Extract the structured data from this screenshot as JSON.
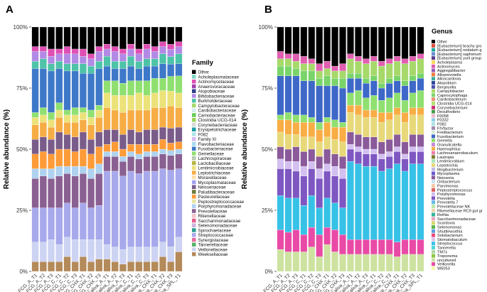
{
  "chart_data": [
    {
      "type": "bar",
      "panel_label": "A",
      "title": "",
      "xlabel": "",
      "ylabel": "Relative abundance (%)",
      "ylim": [
        0,
        100
      ],
      "yticks": [
        "0%",
        "25%",
        "50%",
        "75%",
        "100%"
      ],
      "stacked": true,
      "legend_title": "Family",
      "legend_position": "right",
      "categories": [
        "FCG_A_T1",
        "FCG_A_T2",
        "FCG_A_T3",
        "FCG_C_T1",
        "FCG_C_T2",
        "FCG_C_T3",
        "FCG_CHX_T1",
        "FCG_CHX_T2",
        "FCG_CHX_T3",
        "Saliva_A_T1",
        "Saliva_A_T2",
        "Saliva_A_T3",
        "Saliva_C_T1",
        "Saliva_C_T2",
        "Saliva_C_T3",
        "Saliva_CHX_T1",
        "Saliva_CHX_T2",
        "Saliva_CHX_T3",
        "Saliva_SPL_T1"
      ],
      "legend": [
        "Other",
        "Acholeplasmataceae",
        "Actinomycetaceae",
        "Anaerovoracaceae",
        "Atopobiaceae",
        "Bifidobacteriaceae",
        "Burkholderiaceae",
        "Campylobacteraceae",
        "Cardiobacteriaceae",
        "Carnobacteriaceae",
        "Clostridia UCG-014",
        "Corynebacteriaceae",
        "Erysipelotrichaceae",
        "F082",
        "Family XI",
        "Flavobacteriaceae",
        "Fusobacteriaceae",
        "Gemellaceae",
        "Lachnospiraceae",
        "Lactobacillaceae",
        "Lentimicrobiaceae",
        "Leptotrichiaceae",
        "Moraxellaceae",
        "Mycoplasmataceae",
        "Neisseriaceae",
        "Paludibacteraceae",
        "Pasteurellaceae",
        "Peptostreptococcaceae",
        "Porphyromonadaceae",
        "Prevotellaceae",
        "Rikenellaceae",
        "Saccharimonadaceae",
        "Selenomonadaceae",
        "Spirochaetaceae",
        "Streptococcaceae",
        "Synergistaceae",
        "Tannerellaceae",
        "Veillonellaceae",
        "Weeksellaceae"
      ],
      "colors": [
        "#000000",
        "#7ad7c2",
        "#e04fb3",
        "#a33fb0",
        "#2f3e8c",
        "#b28ae6",
        "#4ec3a8",
        "#a6d96a",
        "#d6ecf0",
        "#66cc55",
        "#9ad35a",
        "#d9d9d9",
        "#1e9ea6",
        "#b0e3e6",
        "#d9b8f0",
        "#a4dcf0",
        "#3e78c8",
        "#8fe070",
        "#b8c9b0",
        "#b5b540",
        "#ece27a",
        "#f6ad45",
        "#ffe0a8",
        "#a2a2f0",
        "#7a5c8a",
        "#707a3a",
        "#ff9b38",
        "#e8e5a0",
        "#aed2ef",
        "#8a6092",
        "#f2c3cf",
        "#ea5e8d",
        "#cdb3df",
        "#2e9e8e",
        "#a8a8ec",
        "#e86aa0",
        "#59b368",
        "#cdd3f2",
        "#b48a5a"
      ],
      "series": [
        {
          "name": "Other",
          "values": [
            8,
            8,
            9,
            9,
            8,
            9,
            9,
            11,
            8,
            7,
            8,
            9,
            7,
            9,
            7,
            8,
            6,
            7,
            6
          ]
        },
        {
          "name": "Actinomycetaceae",
          "values": [
            2,
            2,
            3,
            2,
            3,
            2,
            3,
            2,
            2,
            2,
            2,
            2,
            2,
            2,
            2,
            2,
            2,
            2,
            2
          ]
        },
        {
          "name": "Bifidobacteriaceae",
          "values": [
            4,
            3,
            3,
            3,
            4,
            4,
            3,
            3,
            4,
            3,
            4,
            3,
            3,
            3,
            4,
            3,
            3,
            3,
            3
          ]
        },
        {
          "name": "Burkholderiaceae",
          "values": [
            3,
            4,
            3,
            3,
            3,
            3,
            4,
            3,
            3,
            4,
            3,
            3,
            4,
            3,
            3,
            3,
            4,
            3,
            4
          ]
        },
        {
          "name": "Fusobacteriaceae",
          "values": [
            18,
            16,
            17,
            14,
            16,
            15,
            14,
            15,
            15,
            6,
            5,
            6,
            6,
            5,
            6,
            5,
            6,
            5,
            5
          ]
        },
        {
          "name": "Gemellaceae",
          "values": [
            2,
            3,
            3,
            3,
            2,
            3,
            2,
            3,
            2,
            5,
            6,
            5,
            6,
            5,
            6,
            6,
            5,
            6,
            7
          ]
        },
        {
          "name": "Lentimicrobiaceae",
          "values": [
            3,
            3,
            3,
            3,
            3,
            3,
            3,
            3,
            3,
            6,
            6,
            7,
            6,
            7,
            6,
            6,
            7,
            6,
            6
          ]
        },
        {
          "name": "Leptotrichiaceae",
          "values": [
            6,
            6,
            5,
            6,
            5,
            6,
            5,
            6,
            6,
            9,
            8,
            9,
            8,
            9,
            8,
            9,
            8,
            9,
            8
          ]
        },
        {
          "name": "Neisseriaceae",
          "values": [
            6,
            6,
            6,
            7,
            6,
            6,
            7,
            6,
            6,
            6,
            5,
            6,
            6,
            5,
            6,
            6,
            5,
            6,
            6
          ]
        },
        {
          "name": "Pasteurellaceae",
          "values": [
            6,
            7,
            6,
            7,
            7,
            6,
            7,
            6,
            7,
            3,
            4,
            3,
            3,
            4,
            3,
            3,
            4,
            3,
            3
          ]
        },
        {
          "name": "Porphyromonadaceae",
          "values": [
            4,
            3,
            4,
            4,
            3,
            4,
            3,
            4,
            4,
            2,
            2,
            2,
            2,
            2,
            2,
            2,
            2,
            2,
            2
          ]
        },
        {
          "name": "Prevotellaceae",
          "values": [
            12,
            13,
            12,
            13,
            12,
            13,
            12,
            12,
            13,
            6,
            6,
            6,
            6,
            6,
            6,
            6,
            6,
            6,
            6
          ]
        },
        {
          "name": "Streptococcaceae",
          "values": [
            14,
            14,
            13,
            15,
            14,
            13,
            15,
            13,
            14,
            30,
            31,
            30,
            31,
            30,
            31,
            31,
            30,
            31,
            28
          ]
        },
        {
          "name": "Veillonellaceae",
          "values": [
            8,
            8,
            9,
            7,
            8,
            9,
            7,
            9,
            8,
            6,
            6,
            6,
            6,
            6,
            6,
            6,
            6,
            6,
            6
          ]
        },
        {
          "name": "Weeksellaceae",
          "values": [
            4,
            4,
            4,
            4,
            6,
            4,
            6,
            4,
            5,
            5,
            4,
            3,
            4,
            4,
            4,
            4,
            6,
            4,
            8
          ]
        }
      ]
    },
    {
      "type": "bar",
      "panel_label": "B",
      "title": "",
      "xlabel": "",
      "ylabel": "Relative abundance (%)",
      "ylim": [
        0,
        100
      ],
      "yticks": [
        "0%",
        "25%",
        "50%",
        "75%",
        "100%"
      ],
      "stacked": true,
      "legend_title": "Genus",
      "legend_position": "right",
      "categories": [
        "FCG_A_T1",
        "FCG_A_T2",
        "FCG_A_T3",
        "FCG_C_T1",
        "FCG_C_T2",
        "FCG_C_T3",
        "FCG_CHX_T1",
        "FCG_CHX_T2",
        "FCG_CHX_T3",
        "Saliva_A_T1",
        "Saliva_A_T2",
        "Saliva_A_T3",
        "Saliva_C_T1",
        "Saliva_C_T2",
        "Saliva_C_T3",
        "Saliva_CHX_T1",
        "Saliva_CHX_T2",
        "Saliva_CHX_T3",
        "Saliva_SPL_T1"
      ],
      "legend": [
        "Other",
        "[Eubacterium] brachy gro",
        "[Eubacterium] nodatum g",
        "[Eubacterium] saphenum",
        "[Eubacterium] yurii group",
        "Acholeplasma",
        "Actinomyces",
        "Aggregatibacter",
        "Alloprevotella",
        "Alloscardovia",
        "Atopobium",
        "Bergeyella",
        "Campylobacter",
        "Capnocytophaga",
        "Cardiobacterium",
        "Clostridia UCG-014",
        "Corynebacterium",
        "Desulfovibrio",
        "F0058",
        "F0332",
        "F082",
        "FIVfactor",
        "Fretibacterium",
        "Fusobacterium",
        "Gemella",
        "Granulicatella",
        "Haemophilus",
        "Lachnoanaerobaculum",
        "Lautropia",
        "Lentimicrobium",
        "Leptotrichia",
        "Mogibacterium",
        "Mycoplasma",
        "Neisseria",
        "Oribacterium",
        "Parvimonas",
        "Peptostreptococcus",
        "Porphyromonas",
        "Prevotella",
        "Prevotella 7",
        "Prevotellaceae NK",
        "Rikenellaceae RC9 gut gr",
        "Rothia",
        "Saccharimonadaceae",
        "Scardovia",
        "Selenomonas",
        "Shuttleworthia",
        "Solobacterium",
        "Stomatobaculum",
        "Streptococcus",
        "Tannerella",
        "TM7x",
        "Treponema",
        "uncultured",
        "Veillonella",
        "W5053"
      ],
      "colors": [
        "#000000",
        "#e24a3b",
        "#1ea8a0",
        "#6d8fd6",
        "#5b3f8c",
        "#ffd85c",
        "#e05fb0",
        "#9c5fb5",
        "#f07d3a",
        "#3fb0a0",
        "#2f4a9a",
        "#4f4fb0",
        "#a6d96a",
        "#79d46a",
        "#ee8f75",
        "#b2e26e",
        "#cf2f6f",
        "#4a9e4a",
        "#f0b8d0",
        "#8fd0e8",
        "#b0e3e6",
        "#9e8ab0",
        "#d7ecd8",
        "#3e68c8",
        "#8fe070",
        "#c68ad8",
        "#f9ad45",
        "#ef7ea8",
        "#7f7f30",
        "#a7e5b8",
        "#e7d97a",
        "#c2b8e8",
        "#6a5acd",
        "#8a5a9a",
        "#cbe5f0",
        "#f8c9a6",
        "#e06060",
        "#d3c0f0",
        "#7e57c2",
        "#66b8e8",
        "#bde6a8",
        "#e6d6b0",
        "#2fb59a",
        "#f0a0c0",
        "#d8d870",
        "#5eb64e",
        "#5b9fdf",
        "#e84a7e",
        "#ddc2ea",
        "#36c2e6",
        "#4fd6d6",
        "#b2d8a6",
        "#8ec63f",
        "#cde2a0",
        "#e94aa6",
        "#f7f7a8"
      ],
      "series": [
        {
          "name": "Other",
          "values": [
            10,
            11,
            11,
            12,
            13,
            15,
            14,
            16,
            15,
            11,
            12,
            13,
            12,
            14,
            13,
            12,
            13,
            12,
            11
          ]
        },
        {
          "name": "Actinomyces",
          "values": [
            3,
            2,
            3,
            3,
            2,
            3,
            3,
            2,
            3,
            2,
            2,
            2,
            2,
            2,
            2,
            2,
            2,
            2,
            2
          ]
        },
        {
          "name": "Campylobacter",
          "values": [
            3,
            3,
            3,
            3,
            3,
            3,
            3,
            3,
            3,
            6,
            5,
            6,
            6,
            7,
            6,
            6,
            7,
            6,
            6
          ]
        },
        {
          "name": "Capnocytophaga",
          "values": [
            4,
            4,
            3,
            4,
            4,
            3,
            4,
            3,
            4,
            2,
            2,
            2,
            2,
            2,
            2,
            2,
            2,
            2,
            2
          ]
        },
        {
          "name": "Fusobacterium",
          "values": [
            16,
            15,
            16,
            14,
            15,
            15,
            13,
            14,
            14,
            6,
            5,
            6,
            6,
            5,
            6,
            5,
            6,
            5,
            5
          ]
        },
        {
          "name": "Gemella",
          "values": [
            2,
            3,
            3,
            3,
            2,
            3,
            2,
            3,
            2,
            5,
            6,
            5,
            6,
            5,
            6,
            6,
            5,
            6,
            7
          ]
        },
        {
          "name": "Haemophilus",
          "values": [
            5,
            6,
            5,
            6,
            6,
            5,
            6,
            5,
            6,
            3,
            4,
            3,
            3,
            4,
            3,
            3,
            4,
            3,
            3
          ]
        },
        {
          "name": "Leptotrichia",
          "values": [
            6,
            6,
            5,
            6,
            5,
            6,
            5,
            6,
            6,
            8,
            8,
            8,
            8,
            8,
            8,
            8,
            8,
            8,
            8
          ]
        },
        {
          "name": "Neisseria",
          "values": [
            5,
            5,
            6,
            6,
            5,
            5,
            6,
            5,
            5,
            5,
            5,
            5,
            5,
            5,
            5,
            5,
            5,
            5,
            5
          ]
        },
        {
          "name": "Porphyromonas",
          "values": [
            4,
            3,
            4,
            4,
            3,
            4,
            3,
            4,
            4,
            2,
            2,
            2,
            2,
            2,
            2,
            2,
            2,
            2,
            2
          ]
        },
        {
          "name": "Prevotella",
          "values": [
            11,
            12,
            11,
            12,
            11,
            12,
            11,
            11,
            12,
            5,
            5,
            5,
            5,
            5,
            5,
            5,
            5,
            5,
            5
          ]
        },
        {
          "name": "Streptococcus",
          "values": [
            14,
            14,
            13,
            12,
            13,
            11,
            12,
            11,
            11,
            32,
            31,
            30,
            30,
            28,
            29,
            32,
            28,
            31,
            31
          ]
        },
        {
          "name": "Veillonella",
          "values": [
            8,
            8,
            9,
            7,
            8,
            9,
            7,
            9,
            8,
            6,
            6,
            6,
            6,
            6,
            6,
            6,
            6,
            6,
            6
          ]
        },
        {
          "name": "uncultured",
          "values": [
            9,
            8,
            8,
            8,
            10,
            6,
            11,
            8,
            7,
            7,
            7,
            7,
            7,
            7,
            7,
            6,
            7,
            7,
            7
          ]
        }
      ]
    }
  ]
}
